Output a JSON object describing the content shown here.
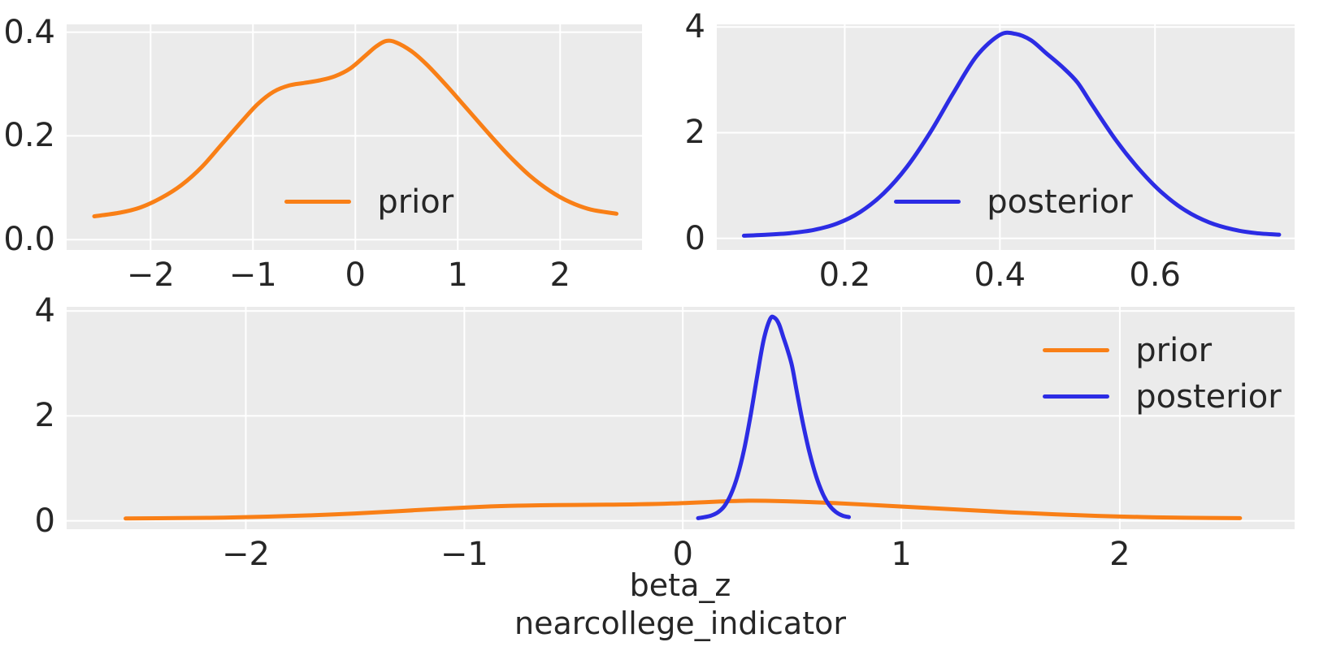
{
  "figure": {
    "background": "#ffffff",
    "axes_background": "#ebebeb",
    "grid_color": "#ffffff",
    "text_color": "#262626",
    "prior_color": "#f97f16",
    "posterior_color": "#2c2ce4",
    "xlabel": {
      "line1": "beta_z",
      "line2": "nearcollege_indicator"
    }
  },
  "chart_data": [
    {
      "id": "prior",
      "type": "line",
      "title": "",
      "xlabel": "",
      "ylabel": "",
      "grid": true,
      "legend_position": "center",
      "xlim": [
        -2.82,
        2.8
      ],
      "ylim": [
        -0.02,
        0.415
      ],
      "xticks": [
        -2,
        -1,
        0,
        1,
        2
      ],
      "xtick_labels": [
        "−2",
        "−1",
        "0",
        "1",
        "2"
      ],
      "yticks": [
        0,
        0.2,
        0.4
      ],
      "ytick_labels": [
        "0.0",
        "0.2",
        "0.4"
      ],
      "series": [
        {
          "name": "prior",
          "color": "#f97f16",
          "x": [
            -2.55,
            -2.3,
            -2.1,
            -1.9,
            -1.7,
            -1.5,
            -1.3,
            -1.1,
            -0.95,
            -0.8,
            -0.65,
            -0.5,
            -0.35,
            -0.2,
            -0.05,
            0.1,
            0.2,
            0.3,
            0.4,
            0.55,
            0.7,
            0.9,
            1.1,
            1.3,
            1.5,
            1.7,
            1.9,
            2.1,
            2.3,
            2.55
          ],
          "y": [
            0.045,
            0.052,
            0.062,
            0.08,
            0.105,
            0.14,
            0.185,
            0.23,
            0.262,
            0.285,
            0.297,
            0.302,
            0.307,
            0.315,
            0.33,
            0.355,
            0.372,
            0.383,
            0.38,
            0.363,
            0.337,
            0.295,
            0.25,
            0.205,
            0.162,
            0.124,
            0.094,
            0.072,
            0.058,
            0.05
          ]
        }
      ]
    },
    {
      "id": "posterior",
      "type": "line",
      "title": "",
      "xlabel": "",
      "ylabel": "",
      "grid": true,
      "legend_position": "center",
      "xlim": [
        0.035,
        0.78
      ],
      "ylim": [
        -0.22,
        4.05
      ],
      "xticks": [
        0.2,
        0.4,
        0.6
      ],
      "xtick_labels": [
        "0.2",
        "0.4",
        "0.6"
      ],
      "yticks": [
        0,
        2,
        4
      ],
      "ytick_labels": [
        "0",
        "2",
        "4"
      ],
      "series": [
        {
          "name": "posterior",
          "color": "#2c2ce4",
          "x": [
            0.07,
            0.1,
            0.13,
            0.16,
            0.19,
            0.22,
            0.25,
            0.28,
            0.31,
            0.34,
            0.37,
            0.4,
            0.42,
            0.44,
            0.46,
            0.48,
            0.5,
            0.52,
            0.55,
            0.58,
            0.61,
            0.64,
            0.67,
            0.7,
            0.73,
            0.76
          ],
          "y": [
            0.05,
            0.07,
            0.1,
            0.16,
            0.28,
            0.5,
            0.85,
            1.35,
            2.0,
            2.75,
            3.45,
            3.85,
            3.87,
            3.75,
            3.5,
            3.25,
            2.95,
            2.5,
            1.85,
            1.3,
            0.85,
            0.52,
            0.3,
            0.17,
            0.1,
            0.07
          ]
        }
      ]
    },
    {
      "id": "combined",
      "type": "line",
      "title": "",
      "xlabel": "beta_z\nnearcollege_indicator",
      "ylabel": "",
      "grid": true,
      "legend_position": "upper right",
      "xlim": [
        -2.82,
        2.8
      ],
      "ylim": [
        -0.16,
        4.08
      ],
      "xticks": [
        -2,
        -1,
        0,
        1,
        2
      ],
      "xtick_labels": [
        "−2",
        "−1",
        "0",
        "1",
        "2"
      ],
      "yticks": [
        0,
        2,
        4
      ],
      "ytick_labels": [
        "0",
        "2",
        "4"
      ],
      "series": [
        {
          "name": "prior",
          "color": "#f97f16",
          "x": [
            -2.55,
            -2.3,
            -2.1,
            -1.9,
            -1.7,
            -1.5,
            -1.3,
            -1.1,
            -0.95,
            -0.8,
            -0.65,
            -0.5,
            -0.35,
            -0.2,
            -0.05,
            0.1,
            0.2,
            0.3,
            0.4,
            0.55,
            0.7,
            0.9,
            1.1,
            1.3,
            1.5,
            1.7,
            1.9,
            2.1,
            2.3,
            2.55
          ],
          "y": [
            0.045,
            0.052,
            0.062,
            0.08,
            0.105,
            0.14,
            0.185,
            0.23,
            0.262,
            0.285,
            0.297,
            0.302,
            0.307,
            0.315,
            0.33,
            0.355,
            0.372,
            0.383,
            0.38,
            0.363,
            0.337,
            0.295,
            0.25,
            0.205,
            0.162,
            0.124,
            0.094,
            0.072,
            0.058,
            0.05
          ]
        },
        {
          "name": "posterior",
          "color": "#2c2ce4",
          "x": [
            0.07,
            0.1,
            0.13,
            0.16,
            0.19,
            0.22,
            0.25,
            0.28,
            0.31,
            0.34,
            0.37,
            0.4,
            0.42,
            0.44,
            0.46,
            0.48,
            0.5,
            0.52,
            0.55,
            0.58,
            0.61,
            0.64,
            0.67,
            0.7,
            0.73,
            0.76
          ],
          "y": [
            0.05,
            0.07,
            0.1,
            0.16,
            0.28,
            0.5,
            0.85,
            1.35,
            2.0,
            2.75,
            3.45,
            3.85,
            3.87,
            3.75,
            3.5,
            3.25,
            2.95,
            2.5,
            1.85,
            1.3,
            0.85,
            0.52,
            0.3,
            0.17,
            0.1,
            0.07
          ]
        }
      ]
    }
  ]
}
